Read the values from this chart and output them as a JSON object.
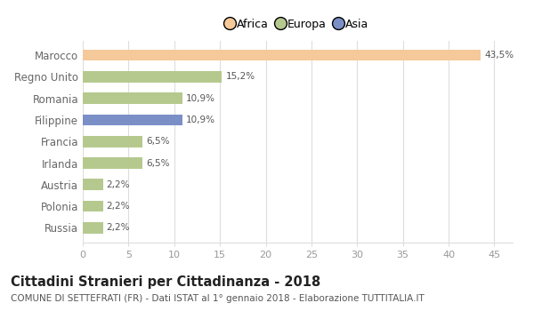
{
  "categories": [
    "Russia",
    "Polonia",
    "Austria",
    "Irlanda",
    "Francia",
    "Filippine",
    "Romania",
    "Regno Unito",
    "Marocco"
  ],
  "values": [
    2.2,
    2.2,
    2.2,
    6.5,
    6.5,
    10.9,
    10.9,
    15.2,
    43.5
  ],
  "labels": [
    "2,2%",
    "2,2%",
    "2,2%",
    "6,5%",
    "6,5%",
    "10,9%",
    "10,9%",
    "15,2%",
    "43,5%"
  ],
  "colors": [
    "#b5c98e",
    "#b5c98e",
    "#b5c98e",
    "#b5c98e",
    "#b5c98e",
    "#7b8fc7",
    "#b5c98e",
    "#b5c98e",
    "#f5c99a"
  ],
  "legend": [
    {
      "label": "Africa",
      "color": "#f5c99a"
    },
    {
      "label": "Europa",
      "color": "#b5c98e"
    },
    {
      "label": "Asia",
      "color": "#7b8fc7"
    }
  ],
  "xlim": [
    0,
    47
  ],
  "xticks": [
    0,
    5,
    10,
    15,
    20,
    25,
    30,
    35,
    40,
    45
  ],
  "title": "Cittadini Stranieri per Cittadinanza - 2018",
  "subtitle": "COMUNE DI SETTEFRATI (FR) - Dati ISTAT al 1° gennaio 2018 - Elaborazione TUTTITALIA.IT",
  "title_fontsize": 10.5,
  "subtitle_fontsize": 7.5,
  "background_color": "#ffffff",
  "bar_height": 0.52,
  "grid_color": "#dddddd",
  "label_fontsize": 7.5,
  "ytick_fontsize": 8.5,
  "xtick_fontsize": 8
}
